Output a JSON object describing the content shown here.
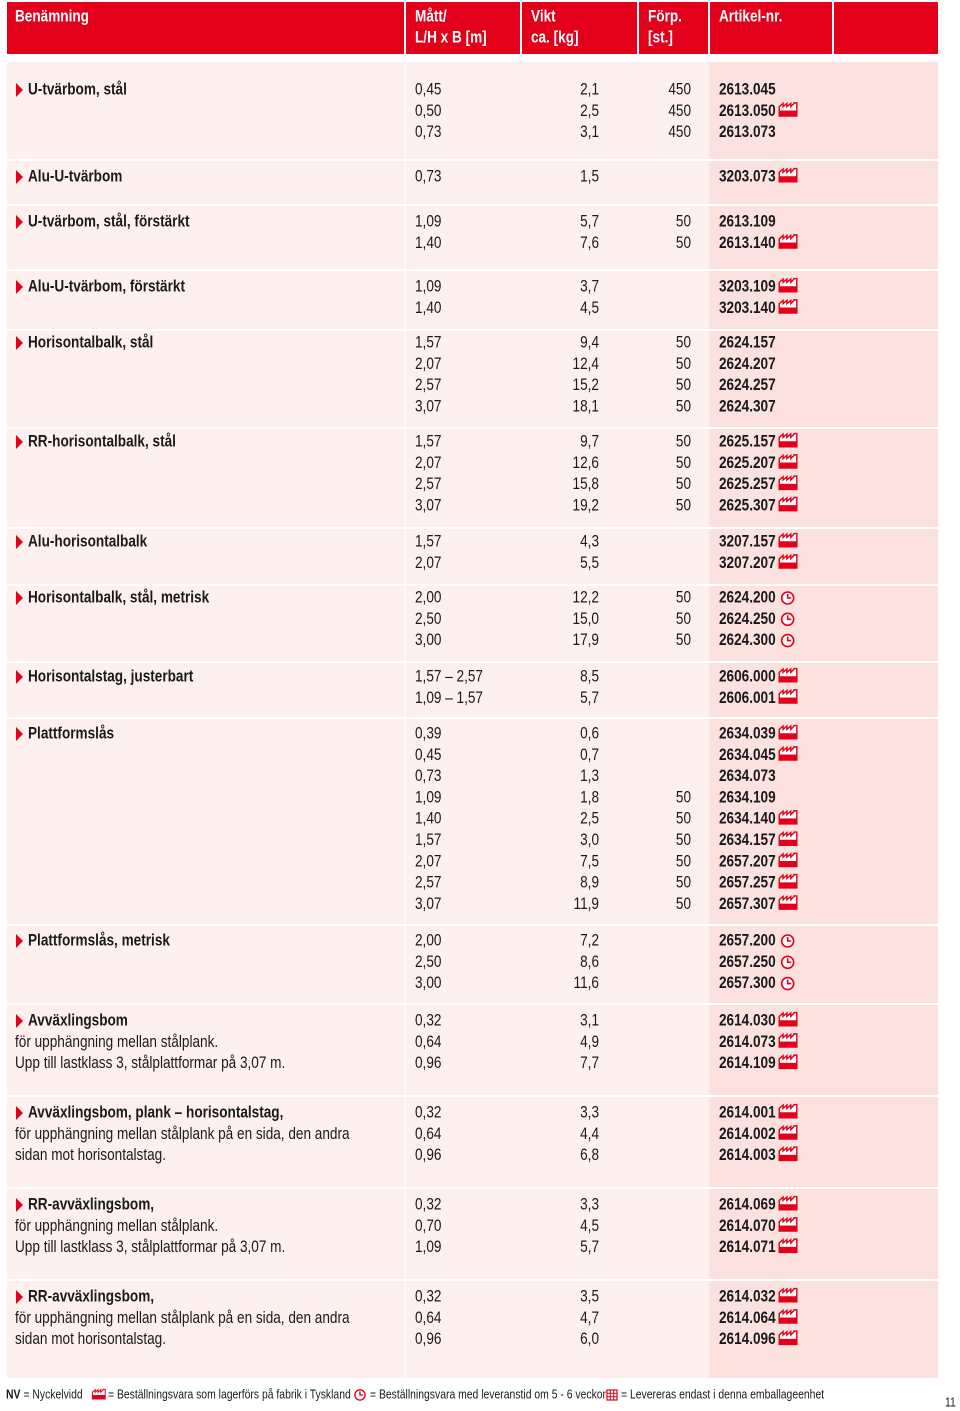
{
  "header": {
    "columns": [
      [
        "Benämning"
      ],
      [
        "Mått/",
        "L/H x B [m]"
      ],
      [
        "Vikt",
        "ca. [kg]"
      ],
      [
        "Förp.",
        "[st.]"
      ],
      [
        "Artikel-nr."
      ]
    ]
  },
  "rows": [
    {
      "name": "U-tvärbom, stål",
      "dimensions": [
        "0,45",
        "0,50",
        "0,73"
      ],
      "weight": [
        "2,1",
        "2,5",
        "3,1"
      ],
      "pack": [
        450,
        450,
        450
      ],
      "article": [
        "2613.045",
        "2613.050",
        "2613.073"
      ]
    },
    {
      "name": "Alu-U-tvärbom",
      "dimensions": [
        "0,73"
      ],
      "weight": [
        "1,5"
      ],
      "pack": [
        null
      ],
      "article": [
        "3203.073"
      ]
    },
    {
      "name": "U-tvärbom, stål, förstärkt",
      "dimensions": [
        "1,09",
        "1,40"
      ],
      "weight": [
        "5,7",
        "7,6"
      ],
      "pack": [
        50,
        50
      ],
      "article": [
        "2613.109",
        "2613.140"
      ]
    },
    {
      "name": "Alu-U-tvärbom, förstärkt",
      "dimensions": [
        "1,09",
        "1,40"
      ],
      "weight": [
        "3,7",
        "4,5"
      ],
      "pack": [
        null,
        null
      ],
      "article": [
        "3203.109",
        "3203.140"
      ]
    },
    {
      "name": "Horisontalbalk, stål",
      "dimensions": [
        "1,57",
        "2,07",
        "2,57",
        "3,07"
      ],
      "weight": [
        "9,4",
        "12,4",
        "15,2",
        "18,1"
      ],
      "pack": [
        50,
        50,
        50,
        50
      ],
      "article": [
        "2624.157",
        "2624.207",
        "2624.257",
        "2624.307"
      ]
    },
    {
      "name": "RR-horisontalbalk, stål",
      "dimensions": [
        "1,57",
        "2,07",
        "2,57",
        "3,07"
      ],
      "weight": [
        "9,7",
        "12,6",
        "15,8",
        "19,2"
      ],
      "pack": [
        50,
        50,
        50,
        50
      ],
      "article": [
        "2625.157",
        "2625.207",
        "2625.257",
        "2625.307"
      ]
    },
    {
      "name": "Alu-horisontalbalk",
      "dimensions": [
        "1,57",
        "2,07"
      ],
      "weight": [
        "4,3",
        "5,5"
      ],
      "pack": [
        null,
        null
      ],
      "article": [
        "3207.157",
        "3207.207"
      ]
    },
    {
      "name": "Horisontalbalk, stål, metrisk",
      "dimensions": [
        "2,00",
        "2,50",
        "3,00"
      ],
      "weight": [
        "12,2",
        "15,0",
        "17,9"
      ],
      "pack": [
        50,
        50,
        50
      ],
      "article": [
        "2624.200",
        "2624.250",
        "2624.300"
      ]
    },
    {
      "name": "Horisontalstag, justerbart",
      "dimensions": [
        "1,57 – 2,57",
        "1,09 – 1,57"
      ],
      "weight": [
        "8,5",
        "5,7"
      ],
      "pack": [
        null,
        null
      ],
      "article": [
        "2606.000",
        "2606.001"
      ]
    },
    {
      "name": "Plattformslås",
      "dimensions": [
        "0,39",
        "0,45",
        "0,73",
        "1,09",
        "1,40",
        "1,57",
        "2,07",
        "2,57",
        "3,07"
      ],
      "weight": [
        "0,6",
        "0,7",
        "1,3",
        "1,8",
        "2,5",
        "3,0",
        "7,5",
        "8,9",
        "11,9"
      ],
      "pack": [
        null,
        null,
        null,
        50,
        50,
        50,
        50,
        50,
        50
      ],
      "article": [
        "2634.039",
        "2634.045",
        "2634.073",
        "2634.109",
        "2634.140",
        "2634.157",
        "2657.207",
        "2657.257",
        "2657.307"
      ]
    },
    {
      "name": "Plattformslås, metrisk",
      "dimensions": [
        "2,00",
        "2,50",
        "3,00"
      ],
      "weight": [
        "7,2",
        "8,6",
        "11,6"
      ],
      "pack": [
        null,
        null,
        null
      ],
      "article": [
        "2657.200",
        "2657.250",
        "2657.300"
      ]
    },
    {
      "name": "Avväxlingsbom",
      "description": [
        "för upphängning mellan stålplank.",
        "Upp till lastklass 3, stålplattformar på 3,07 m."
      ],
      "dimensions": [
        "0,32",
        "0,64",
        "0,96"
      ],
      "weight": [
        "3,1",
        "4,9",
        "7,7"
      ],
      "pack": [
        null,
        null,
        null
      ],
      "article": [
        "2614.030",
        "2614.073",
        "2614.109"
      ]
    },
    {
      "name": "Avväxlingsbom, plank – horisontalstag,",
      "description": [
        "för upphängning mellan stålplank på en sida, den andra",
        "sidan mot horisontalstag."
      ],
      "dimensions": [
        "0,32",
        "0,64",
        "0,96"
      ],
      "weight": [
        "3,3",
        "4,4",
        "6,8"
      ],
      "pack": [
        null,
        null,
        null
      ],
      "article": [
        "2614.001",
        "2614.002",
        "2614.003"
      ]
    },
    {
      "name": "RR-avväxlingsbom,",
      "description": [
        "för upphängning mellan stålplank.",
        "Upp till lastklass 3, stålplattformar på 3,07 m."
      ],
      "dimensions": [
        "0,32",
        "0,70",
        "1,09"
      ],
      "weight": [
        "3,3",
        "4,5",
        "5,7"
      ],
      "pack": [
        null,
        null,
        null
      ],
      "article": [
        "2614.069",
        "2614.070",
        "2614.071"
      ]
    },
    {
      "name": "RR-avväxlingsbom,",
      "description": [
        "för upphängning mellan stålplank på en sida, den andra",
        "sidan mot horisontalstag."
      ],
      "dimensions": [
        "0,32",
        "0,64",
        "0,96"
      ],
      "weight": [
        "3,5",
        "4,7",
        "6,0"
      ],
      "pack": [
        null,
        null,
        null
      ],
      "article": [
        "2614.032",
        "2614.064",
        "2614.096"
      ]
    }
  ],
  "footer": {
    "legend": [
      {
        "key": "NV",
        "text": "= Nyckelvidd"
      },
      {
        "text": "= Beställningsvara som lagerförs på fabrik i Tyskland"
      },
      {
        "text": "= Beställningsvara med leveranstid om 5 - 6 veckor"
      },
      {
        "text": "= Levereras endast i denna emballageenhet"
      }
    ],
    "page": "11"
  }
}
